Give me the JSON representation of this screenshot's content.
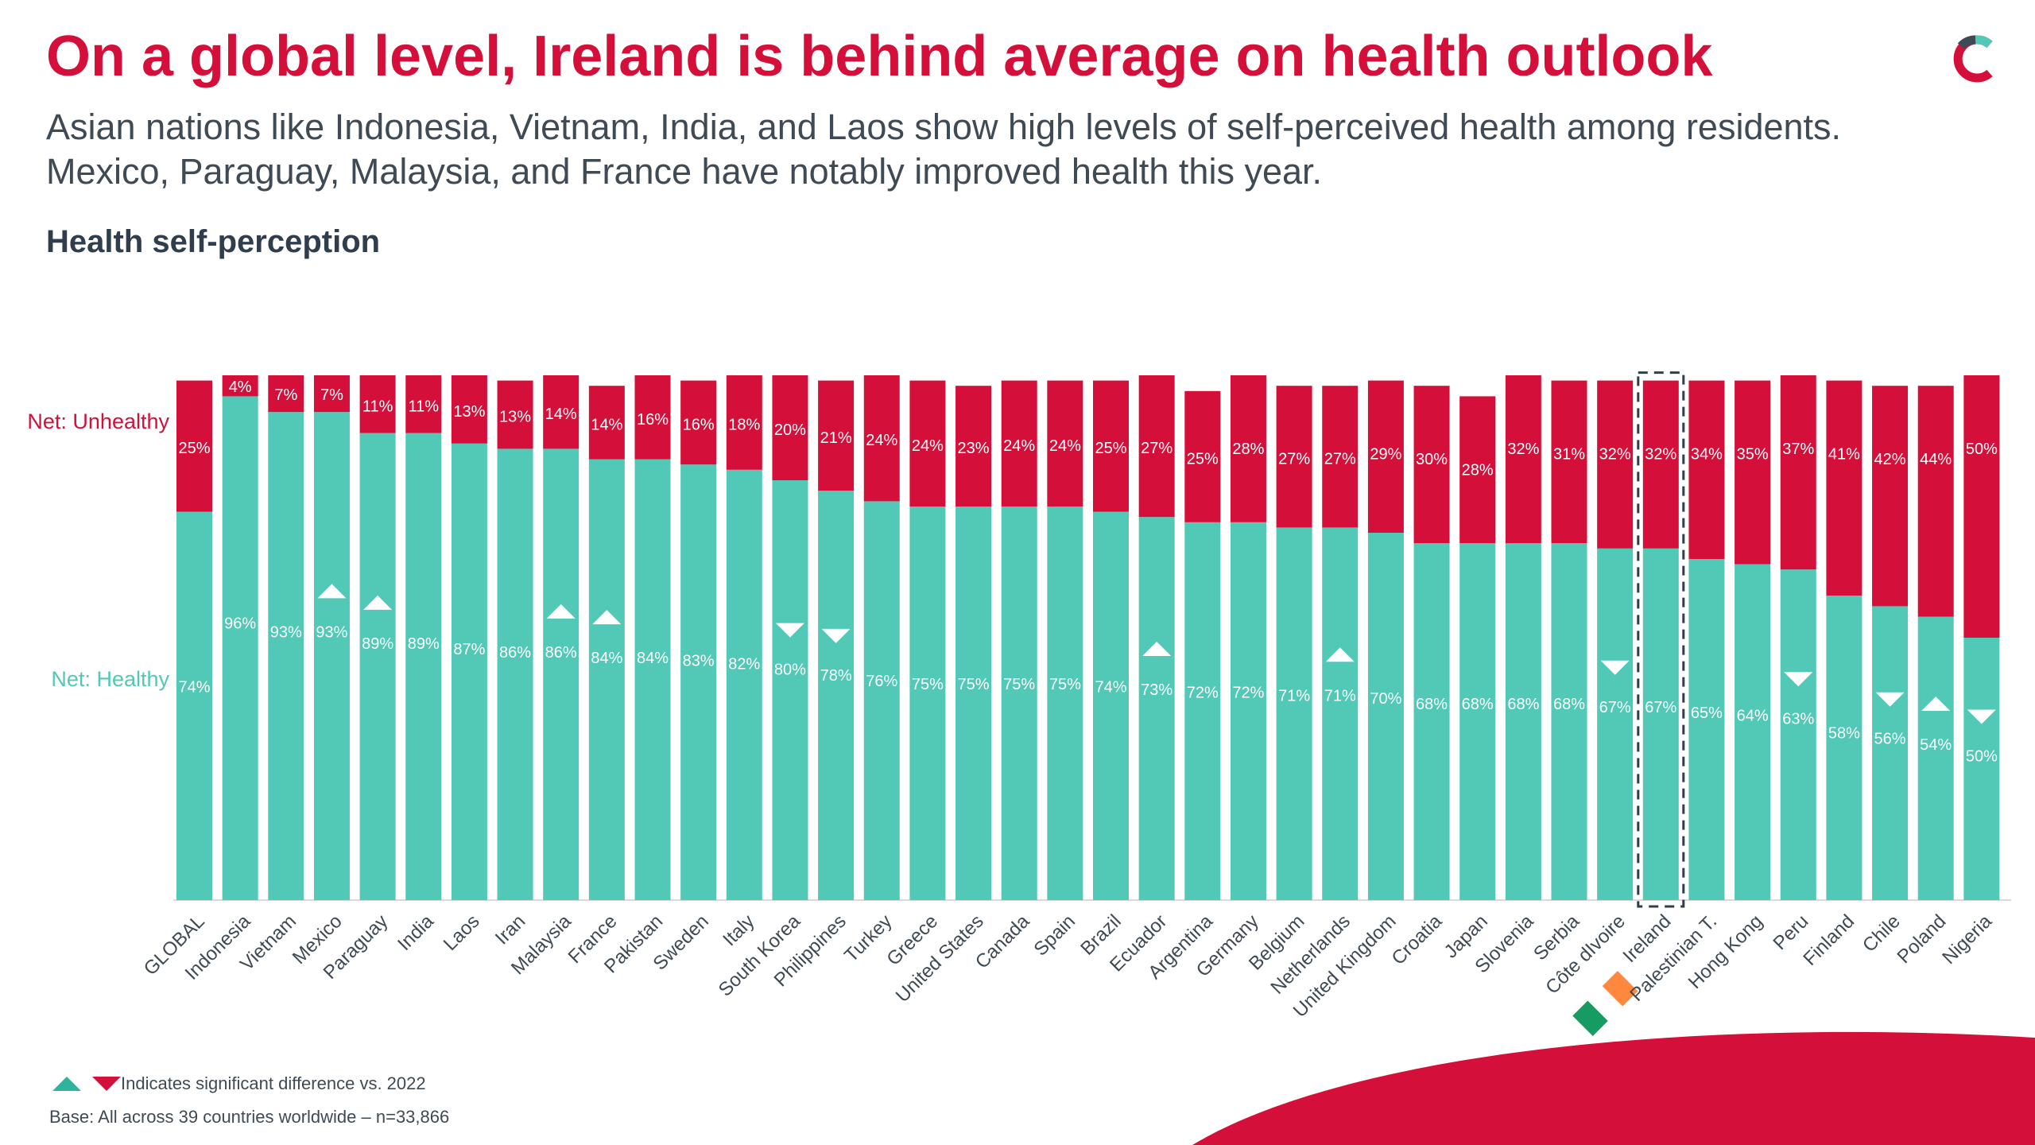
{
  "header": {
    "title": "On a global level, Ireland is behind average on health outlook",
    "subtitle": "Asian nations like Indonesia, Vietnam, India, and Laos show high levels of self-perceived health among residents. Mexico, Paraguay, Malaysia, and France have notably improved health this year.",
    "chart_heading": "Health self-perception"
  },
  "logo": {
    "icon": "c-brand-logo-icon"
  },
  "footer": {
    "note": "Indicates significant difference vs. 2022",
    "base": "Base: All across 39 countries worldwide – n=33,866"
  },
  "colors": {
    "healthy": "#52c8b6",
    "unhealthy": "#d4103a",
    "title": "#d4103a",
    "text": "#3f4a55"
  },
  "chart_data": {
    "type": "bar",
    "stacked": true,
    "categories": [
      "GLOBAL",
      "Indonesia",
      "Vietnam",
      "Mexico",
      "Paraguay",
      "India",
      "Laos",
      "Iran",
      "Malaysia",
      "France",
      "Pakistan",
      "Sweden",
      "Italy",
      "South Korea",
      "Philippines",
      "Turkey",
      "Greece",
      "United States",
      "Canada",
      "Spain",
      "Brazil",
      "Ecuador",
      "Argentina",
      "Germany",
      "Belgium",
      "Netherlands",
      "United Kingdom",
      "Croatia",
      "Japan",
      "Slovenia",
      "Serbia",
      "Côte dIvoire",
      "Ireland",
      "Palestinian T.",
      "Hong Kong",
      "Peru",
      "Finland",
      "Chile",
      "Poland",
      "Nigeria"
    ],
    "series": [
      {
        "name": "Net: Healthy",
        "values": [
          74,
          96,
          93,
          93,
          89,
          89,
          87,
          86,
          86,
          84,
          84,
          83,
          82,
          80,
          78,
          76,
          75,
          75,
          75,
          75,
          74,
          73,
          72,
          72,
          71,
          71,
          70,
          68,
          68,
          68,
          68,
          67,
          67,
          65,
          64,
          63,
          58,
          56,
          54,
          50
        ]
      },
      {
        "name": "Net: Unhealthy",
        "values": [
          25,
          4,
          7,
          7,
          11,
          11,
          13,
          13,
          14,
          14,
          16,
          16,
          18,
          20,
          21,
          24,
          24,
          23,
          24,
          24,
          25,
          27,
          25,
          28,
          27,
          27,
          29,
          30,
          28,
          32,
          31,
          32,
          32,
          34,
          35,
          37,
          41,
          42,
          44,
          50
        ]
      }
    ],
    "significance": [
      null,
      null,
      null,
      "up",
      "up",
      null,
      null,
      null,
      "up",
      "up",
      null,
      null,
      null,
      "down",
      "down",
      null,
      null,
      null,
      null,
      null,
      null,
      "up",
      null,
      null,
      null,
      "up",
      null,
      null,
      null,
      null,
      null,
      "down",
      null,
      null,
      null,
      "down",
      null,
      "down",
      "up",
      "down"
    ],
    "highlight": "Ireland",
    "legend": "left",
    "ylim": [
      0,
      100
    ]
  }
}
